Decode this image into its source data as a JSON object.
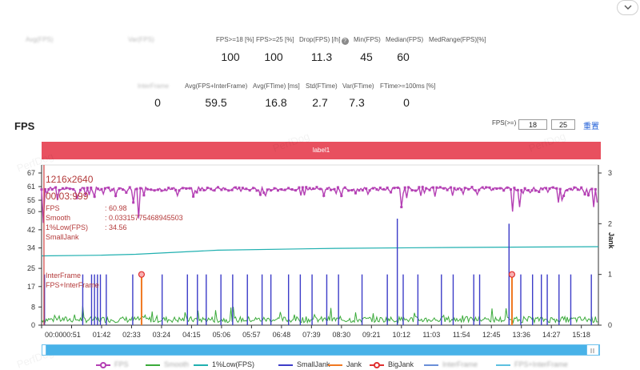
{
  "metrics": {
    "row1": {
      "headers": [
        "Avg(FPS)",
        "Var(FPS)",
        "FPS>=18 [%]",
        "FPS>=25 [%]",
        "Drop(FPS) [/h]",
        "Min(FPS)",
        "Median(FPS)",
        "MedRange(FPS)[%]"
      ],
      "values": [
        "",
        "",
        "100",
        "100",
        "11.3",
        "45",
        "60",
        ""
      ]
    },
    "row2": {
      "headers": [
        "InterFrame",
        "Avg(FPS+InterFrame)",
        "Avg(FTime) [ms]",
        "Std(FTime)",
        "Var(FTime)",
        "FTime>=100ms [%]"
      ],
      "values": [
        "0",
        "59.5",
        "16.8",
        "2.7",
        "7.3",
        "0"
      ]
    }
  },
  "fps_section": {
    "title": "FPS",
    "threshold_label": "FPS(>=)",
    "threshold_1": "18",
    "threshold_2": "25",
    "reset_label": "重置",
    "label_band": "label1",
    "watermark": "PerfDog"
  },
  "tooltip": {
    "resolution": "1216x2640",
    "time": "00:03:999",
    "rows": [
      {
        "key": "FPS",
        "value": ": 60.98"
      },
      {
        "key": "Smooth",
        "value": ": 0.03315775468945503"
      },
      {
        "key": "1%Low(FPS)",
        "value": ": 34.56"
      },
      {
        "key": "SmallJank",
        "value": ""
      },
      {
        "key": "",
        "value": ""
      },
      {
        "key": "",
        "value": ""
      },
      {
        "key": "",
        "value": ""
      },
      {
        "key": "InterFrame",
        "value": ""
      },
      {
        "key": "FPS+InterFrame",
        "value": ""
      }
    ]
  },
  "axes": {
    "right_title": "Jank"
  },
  "legend": [
    {
      "label": "FPS",
      "color": "#b440b4",
      "style": "dot"
    },
    {
      "label": "Smooth",
      "color": "#3aaa3a",
      "style": "line"
    },
    {
      "label": "1%Low(FPS)",
      "color": "#20b0b0",
      "style": "line"
    },
    {
      "label": "SmallJank",
      "color": "#3c3cc8",
      "style": "line"
    },
    {
      "label": "Jank",
      "color": "#f07820",
      "style": "line"
    },
    {
      "label": "BigJank",
      "color": "#e03030",
      "style": "dot"
    },
    {
      "label": "InterFrame",
      "color": "#6a8fd8",
      "style": "line"
    },
    {
      "label": "FPS+InterFrame",
      "color": "#5cc0e0",
      "style": "line"
    }
  ],
  "chart_data": {
    "type": "line",
    "x_ticks": [
      "00:00",
      "00:51",
      "01:42",
      "02:33",
      "03:24",
      "04:15",
      "05:06",
      "05:57",
      "06:48",
      "07:39",
      "08:30",
      "09:21",
      "10:12",
      "11:03",
      "11:54",
      "12:45",
      "13:36",
      "14:27",
      "15:18"
    ],
    "y_left_ticks": [
      "0",
      "8",
      "17",
      "25",
      "34",
      "42",
      "50",
      "55",
      "61",
      "67"
    ],
    "y_left_range": [
      0,
      67
    ],
    "y_right_ticks": [
      "0",
      "1",
      "2",
      "3"
    ],
    "y_right_range": [
      0,
      3
    ],
    "xlim_seconds": [
      0,
      947
    ],
    "series": [
      {
        "name": "FPS",
        "baseline": 60,
        "dips": [
          {
            "t": 4,
            "v": 45
          },
          {
            "t": 28,
            "v": 55
          },
          {
            "t": 60,
            "v": 56
          },
          {
            "t": 75,
            "v": 57
          },
          {
            "t": 155,
            "v": 54
          },
          {
            "t": 165,
            "v": 47
          },
          {
            "t": 230,
            "v": 57
          },
          {
            "t": 380,
            "v": 57
          },
          {
            "t": 480,
            "v": 57
          },
          {
            "t": 613,
            "v": 52
          },
          {
            "t": 620,
            "v": 56
          },
          {
            "t": 700,
            "v": 57
          },
          {
            "t": 800,
            "v": 50
          },
          {
            "t": 812,
            "v": 52
          },
          {
            "t": 820,
            "v": 58
          },
          {
            "t": 880,
            "v": 54
          },
          {
            "t": 885,
            "v": 55
          },
          {
            "t": 940,
            "v": 52
          },
          {
            "t": 945,
            "v": 54
          }
        ]
      },
      {
        "name": "1%Low(FPS)",
        "points": [
          {
            "t": 0,
            "v": 30.5
          },
          {
            "t": 100,
            "v": 30.8
          },
          {
            "t": 160,
            "v": 31.2
          },
          {
            "t": 300,
            "v": 33.0
          },
          {
            "t": 500,
            "v": 33.8
          },
          {
            "t": 700,
            "v": 34.2
          },
          {
            "t": 947,
            "v": 34.56
          }
        ]
      },
      {
        "name": "SmallJank",
        "spikes": [
          {
            "t": 5,
            "v": 1
          },
          {
            "t": 70,
            "v": 1
          },
          {
            "t": 85,
            "v": 1
          },
          {
            "t": 90,
            "v": 1
          },
          {
            "t": 95,
            "v": 1
          },
          {
            "t": 100,
            "v": 1
          },
          {
            "t": 110,
            "v": 1
          },
          {
            "t": 155,
            "v": 1
          },
          {
            "t": 205,
            "v": 1
          },
          {
            "t": 248,
            "v": 1
          },
          {
            "t": 265,
            "v": 1
          },
          {
            "t": 280,
            "v": 1
          },
          {
            "t": 305,
            "v": 1
          },
          {
            "t": 325,
            "v": 1
          },
          {
            "t": 350,
            "v": 1
          },
          {
            "t": 375,
            "v": 1
          },
          {
            "t": 390,
            "v": 1
          },
          {
            "t": 420,
            "v": 1
          },
          {
            "t": 440,
            "v": 1
          },
          {
            "t": 460,
            "v": 1
          },
          {
            "t": 485,
            "v": 1
          },
          {
            "t": 505,
            "v": 1
          },
          {
            "t": 545,
            "v": 1
          },
          {
            "t": 588,
            "v": 1
          },
          {
            "t": 605,
            "v": 2.1
          },
          {
            "t": 615,
            "v": 1
          },
          {
            "t": 640,
            "v": 1
          },
          {
            "t": 680,
            "v": 1
          },
          {
            "t": 700,
            "v": 1
          },
          {
            "t": 735,
            "v": 1
          },
          {
            "t": 745,
            "v": 1
          },
          {
            "t": 795,
            "v": 2
          },
          {
            "t": 815,
            "v": 1
          },
          {
            "t": 835,
            "v": 1
          },
          {
            "t": 850,
            "v": 1
          },
          {
            "t": 860,
            "v": 1
          },
          {
            "t": 880,
            "v": 1
          },
          {
            "t": 900,
            "v": 1
          },
          {
            "t": 935,
            "v": 1
          }
        ]
      },
      {
        "name": "Jank",
        "spikes": [
          {
            "t": 170,
            "v": 1
          },
          {
            "t": 800,
            "v": 1
          }
        ]
      },
      {
        "name": "BigJank",
        "points": [
          {
            "t": 170,
            "v": 1
          },
          {
            "t": 800,
            "v": 1
          }
        ]
      }
    ]
  }
}
